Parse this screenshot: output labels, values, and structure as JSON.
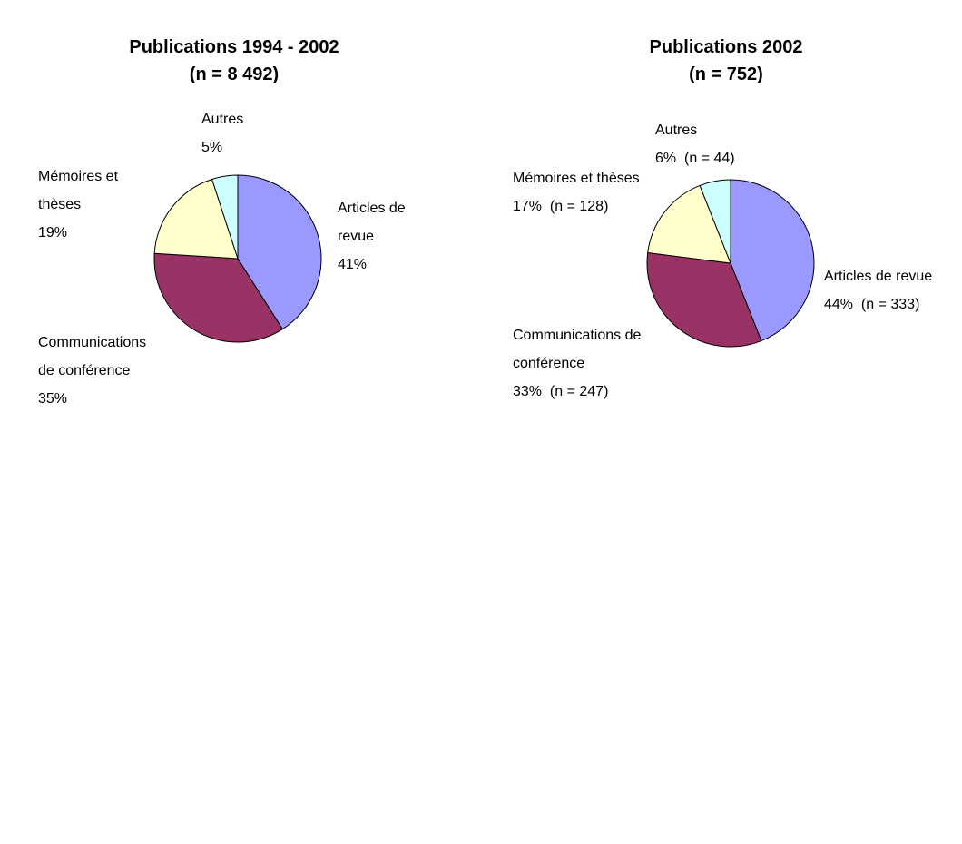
{
  "chart_data": [
    {
      "type": "pie",
      "title": "Publications 1994 - 2002",
      "subtitle": "(n = 8 492)",
      "categories": [
        "Articles de revue",
        "Communications de conférence",
        "Mémoires et thèses",
        "Autres"
      ],
      "values": [
        41,
        35,
        19,
        5
      ],
      "value_labels": [
        "41%",
        "35%",
        "19%",
        "5%"
      ],
      "colors": [
        "#9999ff",
        "#993366",
        "#ffffcc",
        "#ccffff"
      ]
    },
    {
      "type": "pie",
      "title": "Publications 2002",
      "subtitle": "(n = 752)",
      "categories": [
        "Articles de revue",
        "Communications de conférence",
        "Mémoires et thèses",
        "Autres"
      ],
      "values": [
        44,
        33,
        17,
        6
      ],
      "value_labels": [
        "44%",
        "33%",
        "17%",
        "6%"
      ],
      "count_labels": [
        "(n = 333)",
        "(n = 247)",
        "(n = 128)",
        "(n = 44)"
      ],
      "colors": [
        "#9999ff",
        "#993366",
        "#ffffcc",
        "#ccffff"
      ]
    }
  ]
}
